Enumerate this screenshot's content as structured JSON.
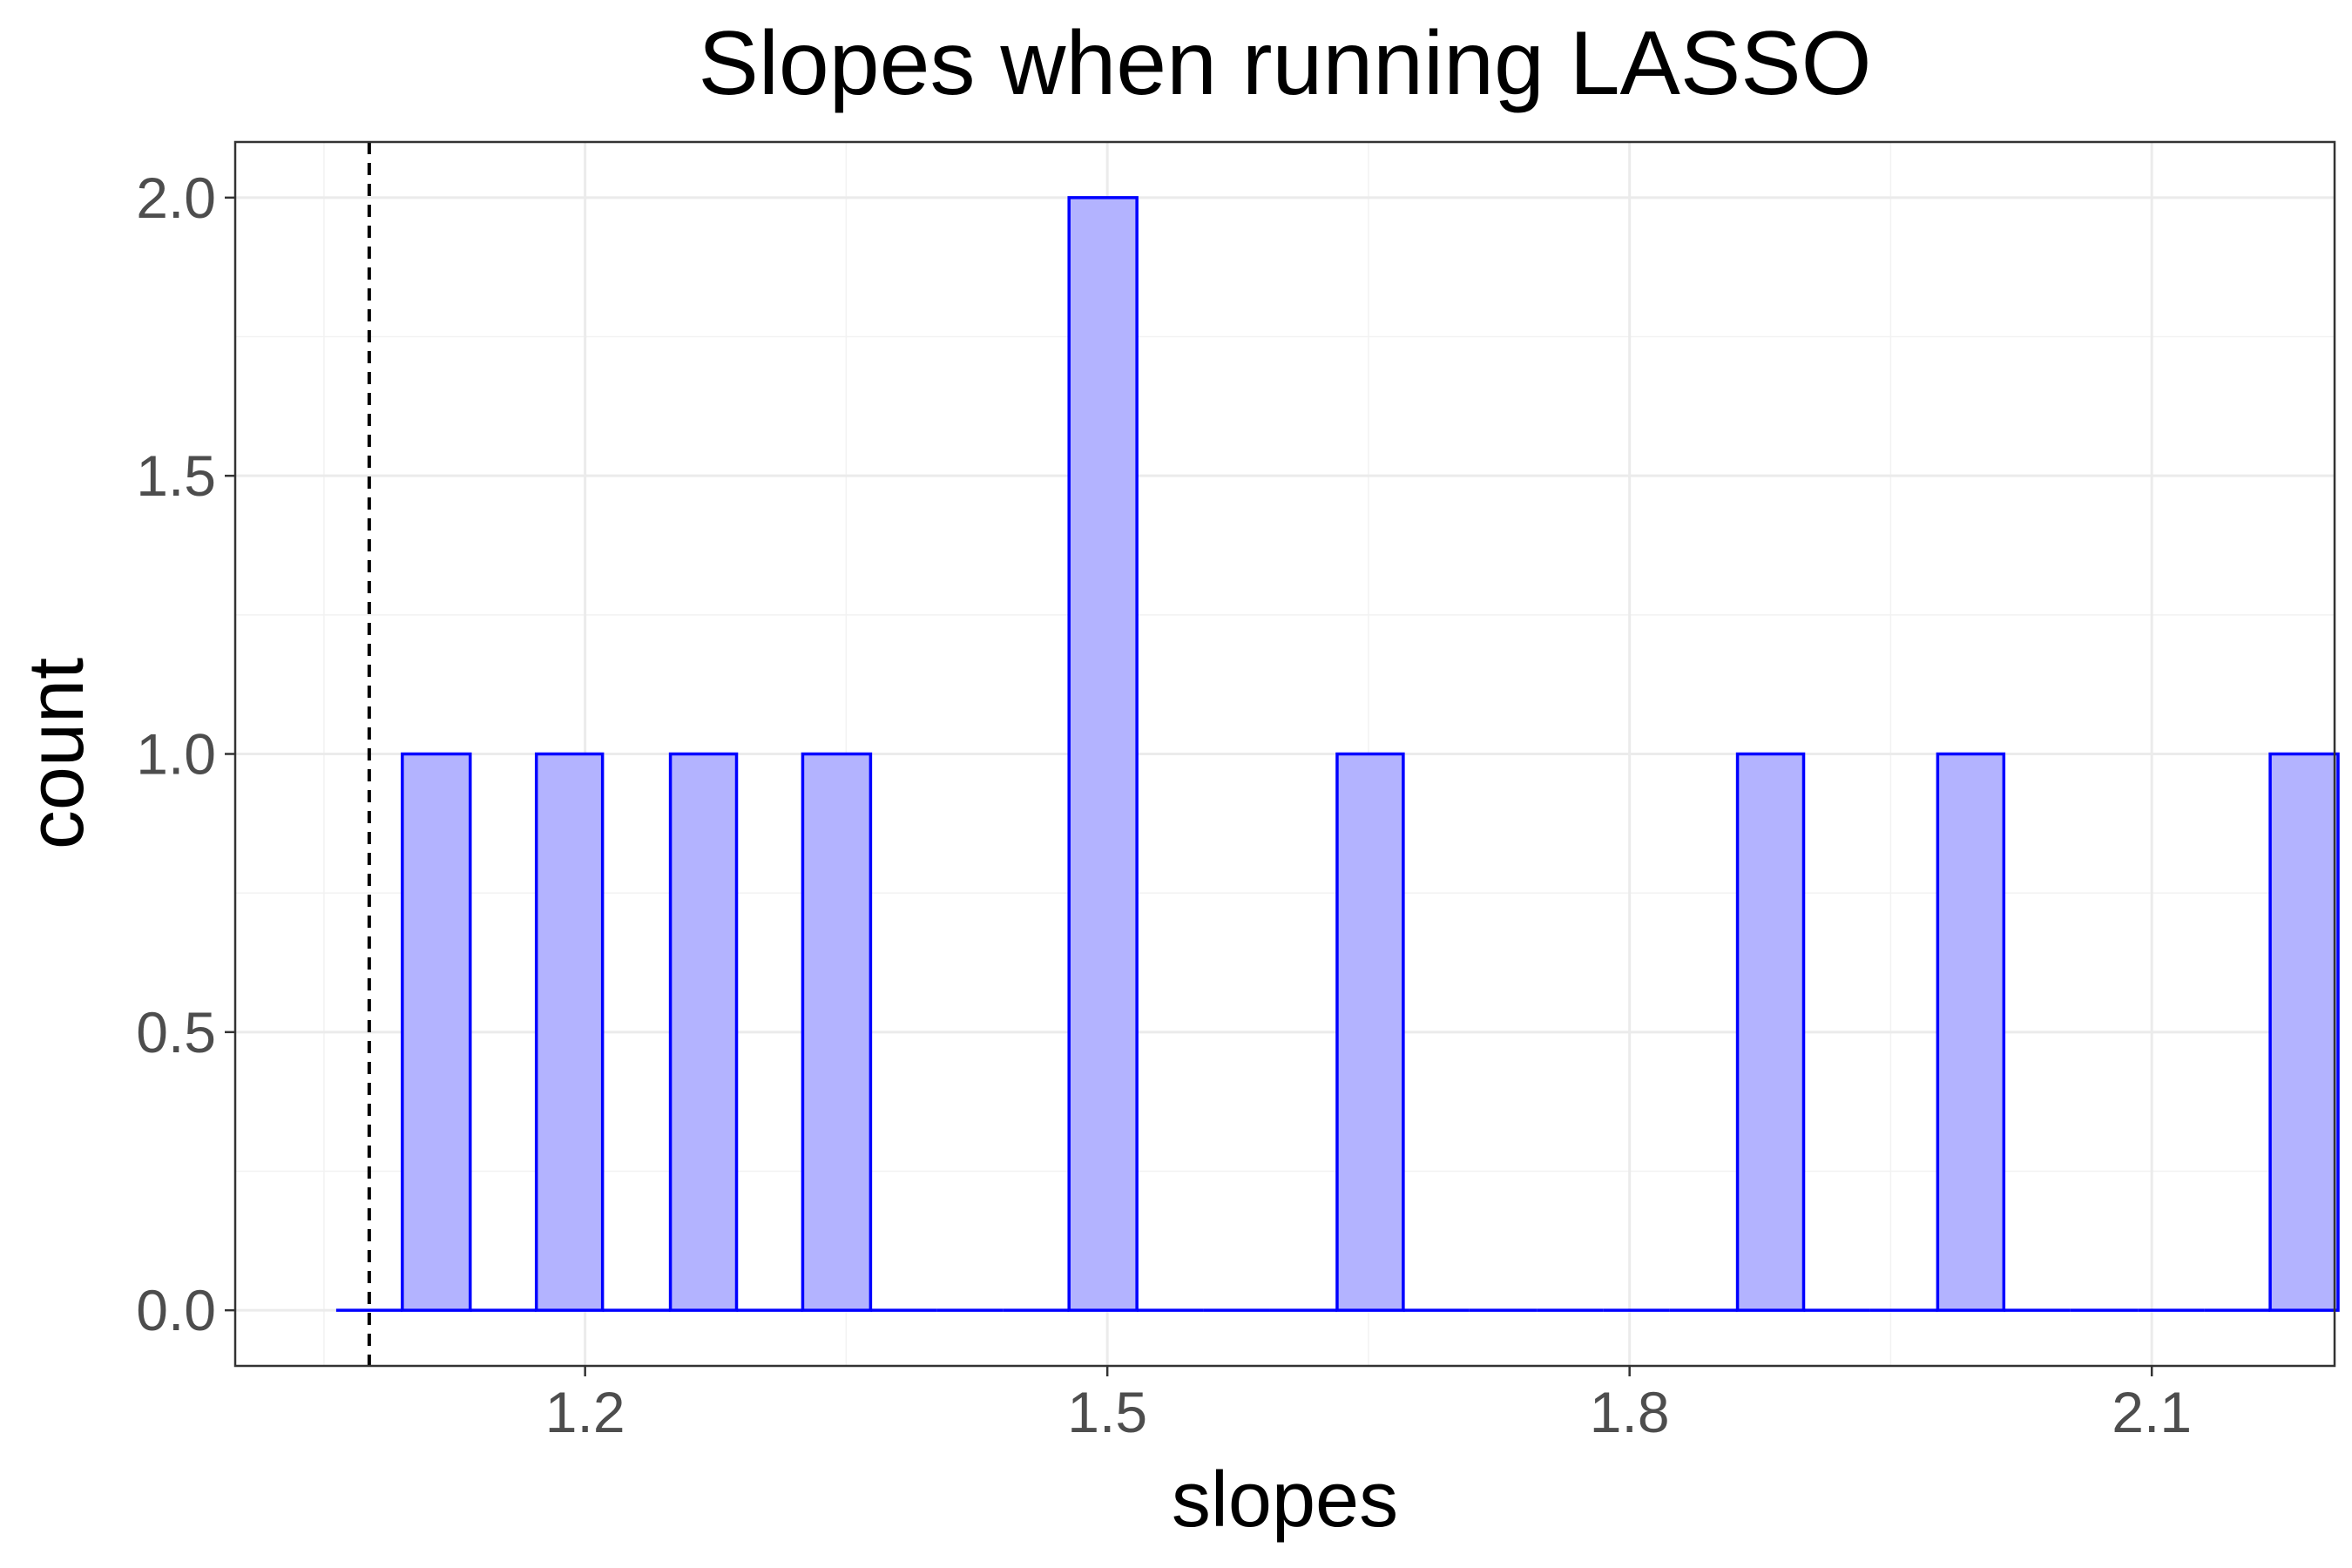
{
  "chart_data": {
    "type": "bar",
    "subtype": "histogram",
    "title": "Slopes when running LASSO",
    "xlabel": "slopes",
    "ylabel": "count",
    "xlim": [
      0.999,
      2.205
    ],
    "ylim": [
      -0.1,
      2.1
    ],
    "x_ticks": [
      1.2,
      1.5,
      1.8,
      2.1
    ],
    "x_tick_labels": [
      "1.2",
      "1.5",
      "1.8",
      "2.1"
    ],
    "y_ticks": [
      0.0,
      0.5,
      1.0,
      1.5,
      2.0
    ],
    "y_tick_labels": [
      "0.0",
      "0.5",
      "1.0",
      "1.5",
      "2.0"
    ],
    "bin_width": 0.0383,
    "bins": [
      {
        "start": 1.057,
        "end": 1.095,
        "count": 0
      },
      {
        "start": 1.095,
        "end": 1.134,
        "count": 1
      },
      {
        "start": 1.134,
        "end": 1.172,
        "count": 0
      },
      {
        "start": 1.172,
        "end": 1.21,
        "count": 1
      },
      {
        "start": 1.21,
        "end": 1.249,
        "count": 0
      },
      {
        "start": 1.249,
        "end": 1.287,
        "count": 1
      },
      {
        "start": 1.287,
        "end": 1.325,
        "count": 0
      },
      {
        "start": 1.325,
        "end": 1.364,
        "count": 1
      },
      {
        "start": 1.364,
        "end": 1.402,
        "count": 0
      },
      {
        "start": 1.402,
        "end": 1.44,
        "count": 0
      },
      {
        "start": 1.44,
        "end": 1.478,
        "count": 0
      },
      {
        "start": 1.478,
        "end": 1.517,
        "count": 2
      },
      {
        "start": 1.517,
        "end": 1.555,
        "count": 0
      },
      {
        "start": 1.555,
        "end": 1.593,
        "count": 0
      },
      {
        "start": 1.593,
        "end": 1.632,
        "count": 0
      },
      {
        "start": 1.632,
        "end": 1.67,
        "count": 1
      },
      {
        "start": 1.67,
        "end": 1.708,
        "count": 0
      },
      {
        "start": 1.708,
        "end": 1.747,
        "count": 0
      },
      {
        "start": 1.747,
        "end": 1.785,
        "count": 0
      },
      {
        "start": 1.785,
        "end": 1.823,
        "count": 0
      },
      {
        "start": 1.823,
        "end": 1.862,
        "count": 0
      },
      {
        "start": 1.862,
        "end": 1.9,
        "count": 1
      },
      {
        "start": 1.9,
        "end": 1.938,
        "count": 0
      },
      {
        "start": 1.938,
        "end": 1.977,
        "count": 0
      },
      {
        "start": 1.977,
        "end": 2.015,
        "count": 1
      },
      {
        "start": 2.015,
        "end": 2.053,
        "count": 0
      },
      {
        "start": 2.053,
        "end": 2.092,
        "count": 0
      },
      {
        "start": 2.092,
        "end": 2.13,
        "count": 0
      },
      {
        "start": 2.13,
        "end": 2.168,
        "count": 0
      },
      {
        "start": 2.168,
        "end": 2.207,
        "count": 1
      }
    ],
    "reference_line": {
      "x": 1.076,
      "style": "dashed",
      "color": "#000000"
    },
    "bar_fill": "#b3b3ff",
    "bar_stroke": "#0000ff",
    "grid": true,
    "legend": "none",
    "theme": "bw"
  }
}
